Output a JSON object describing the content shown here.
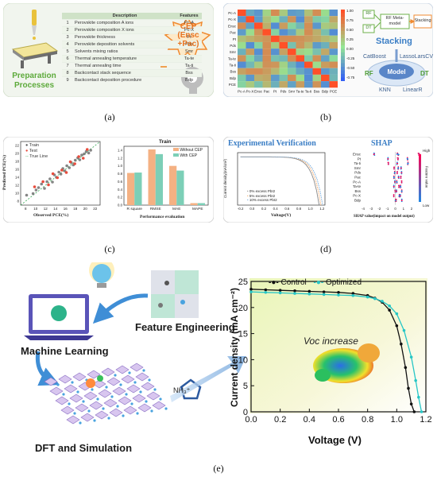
{
  "panel_a": {
    "caption": "(a)",
    "preparation_label": "Preparation Processes",
    "table_headers": [
      "Description",
      "Features"
    ],
    "table_rows": [
      {
        "n": "1",
        "desc": "Perovskite composition A ions",
        "feat": "Pc-A"
      },
      {
        "n": "2",
        "desc": "Perovskite composition X ions",
        "feat": "Pc-X"
      },
      {
        "n": "3",
        "desc": "Perovskite thickness",
        "feat": "Pt"
      },
      {
        "n": "4",
        "desc": "Perovskite deposition solvents",
        "feat": "Pds"
      },
      {
        "n": "5",
        "desc": "Solvents mixing ratios",
        "feat": "Smr"
      },
      {
        "n": "6",
        "desc": "Thermal annealing temperature",
        "feat": "Ta-te"
      },
      {
        "n": "7",
        "desc": "Thermal annealing time",
        "feat": "Ta-ti"
      },
      {
        "n": "8",
        "desc": "Backcontact stack sequence",
        "feat": "Bss"
      },
      {
        "n": "9",
        "desc": "Backcontact deposition procedure",
        "feat": "Bdp"
      }
    ],
    "cep_line1": "CEP",
    "cep_line2": "(Ensc",
    "cep_line3": "+Pac)"
  },
  "panel_b": {
    "caption": "(b)",
    "heatmap_labels": [
      "Pc-A",
      "Pc-X",
      "Ensc",
      "Pac",
      "Pt",
      "Pds",
      "Smr",
      "Ta-te",
      "Ta-ti",
      "Bss",
      "Bdp",
      "PCE"
    ],
    "colorbar_ticks": [
      "1.00",
      "0.75",
      "0.50",
      "0.25",
      "0.00",
      "-0.25",
      "-0.50",
      "-0.75"
    ],
    "flow": {
      "rf": "RF",
      "dt": "DT",
      "meta": "RF Meta-model",
      "stacking": "Stacking"
    },
    "stacking_title": "Stacking",
    "models": {
      "catboost": "CatBoost",
      "lassolarscv": "LassoLarsCV",
      "rf": "RF",
      "dt": "DT",
      "center": "Model",
      "knn": "KNN",
      "linearr": "LinearR"
    }
  },
  "panel_c": {
    "caption": "(c)",
    "scatter": {
      "legend": [
        "Train",
        "Test",
        "True Line"
      ],
      "xlabel": "Observed PCE(%)",
      "ylabel": "Predicted PCE(%)",
      "xticks": [
        "8",
        "10",
        "12",
        "14",
        "16",
        "18",
        "20",
        "22"
      ],
      "yticks": [
        "8",
        "10",
        "12",
        "14",
        "16",
        "18",
        "20",
        "22"
      ]
    },
    "bars": {
      "title": "Train",
      "legend": [
        "Without CEP",
        "With CEP"
      ],
      "xlabel": "Performance evaluation",
      "yticks": [
        "0.0",
        "0.2",
        "0.4",
        "0.6",
        "0.8",
        "1.0",
        "1.2",
        "1.4"
      ]
    }
  },
  "panel_d": {
    "caption": "(d)",
    "ev_title": "Experimental Verification",
    "ev_ylabel": "Current density(mA/cm²)",
    "ev_xlabel": "Voltage(V)",
    "ev_xticks": [
      "-0.2",
      "0.0",
      "0.2",
      "0.4",
      "0.6",
      "0.8",
      "1.0",
      "1.2"
    ],
    "ev_legend": [
      "0% excess PbI2",
      "5% excess PbI2",
      "10% excess PbI2"
    ],
    "shap_title": "SHAP",
    "shap_features": [
      "Ensc",
      "Pt",
      "Ta-ti",
      "Smr",
      "Pds",
      "Pac",
      "Pc-A",
      "Ta-te",
      "Bss",
      "Pc-X",
      "Bdp"
    ],
    "shap_xticks": [
      "-4",
      "-3",
      "-2",
      "-1",
      "0",
      "1",
      "2"
    ],
    "shap_xlabel": "SHAP value(impact on model output)",
    "shap_high": "High",
    "shap_low": "Low",
    "shap_side": "Feature value"
  },
  "panel_e": {
    "caption": "(e)",
    "ml_label": "Machine Learning",
    "fe_label": "Feature Engineering",
    "dft_label": "DFT and Simulation",
    "nh3_label": "NH₃⁺",
    "voc_label": "Voc increase",
    "legend": [
      "Control",
      "Optimized"
    ],
    "xlabel": "Voltage (V)",
    "ylabel": "Current density (mA cm⁻²)"
  },
  "chart_data": [
    {
      "type": "bar",
      "title": "Train",
      "categories": [
        "R square",
        "RMSE",
        "MAE",
        "MAPE"
      ],
      "series": [
        {
          "name": "Without CEP",
          "values": [
            0.82,
            1.42,
            1.0,
            0.05
          ]
        },
        {
          "name": "With CEP",
          "values": [
            0.83,
            1.3,
            0.88,
            0.05
          ]
        }
      ],
      "xlabel": "Performance evaluation",
      "ylim": [
        0,
        1.5
      ],
      "colors": [
        "#f4b183",
        "#7ccfb7"
      ]
    },
    {
      "type": "scatter",
      "xlabel": "Observed PCE(%)",
      "ylabel": "Predicted PCE(%)",
      "xlim": [
        7,
        23
      ],
      "ylim": [
        7,
        23
      ],
      "series": [
        {
          "name": "Train",
          "points": [
            [
              8.2,
              9.5
            ],
            [
              9.5,
              9.9
            ],
            [
              10.1,
              10.8
            ],
            [
              10.6,
              11.4
            ],
            [
              11.2,
              12.3
            ],
            [
              11.8,
              11.2
            ],
            [
              12.3,
              12.9
            ],
            [
              12.9,
              13.6
            ],
            [
              13.4,
              12.8
            ],
            [
              13.8,
              14.6
            ],
            [
              14.2,
              14.0
            ],
            [
              14.7,
              15.3
            ],
            [
              15.1,
              14.8
            ],
            [
              15.5,
              16.2
            ],
            [
              15.9,
              15.6
            ],
            [
              16.3,
              16.9
            ],
            [
              16.8,
              16.4
            ],
            [
              17.2,
              17.7
            ],
            [
              17.6,
              17.1
            ],
            [
              18.0,
              18.3
            ],
            [
              18.5,
              18.9
            ],
            [
              18.9,
              18.4
            ],
            [
              19.3,
              19.6
            ],
            [
              19.8,
              19.9
            ],
            [
              20.2,
              20.5
            ],
            [
              20.7,
              20.1
            ],
            [
              21.1,
              20.8
            ]
          ]
        },
        {
          "name": "Test",
          "points": [
            [
              9.8,
              11.6
            ],
            [
              11.5,
              12.9
            ],
            [
              12.6,
              12.1
            ],
            [
              13.5,
              14.9
            ],
            [
              14.4,
              13.9
            ],
            [
              15.3,
              15.8
            ],
            [
              16.2,
              15.2
            ],
            [
              17.0,
              17.9
            ],
            [
              17.9,
              17.4
            ],
            [
              18.7,
              19.2
            ],
            [
              19.6,
              18.8
            ],
            [
              20.4,
              21.0
            ]
          ]
        }
      ]
    },
    {
      "type": "line",
      "xlabel": "Voltage (V)",
      "ylabel": "Current density (mA cm⁻²)",
      "xlim": [
        0,
        1.2
      ],
      "ylim": [
        0,
        25
      ],
      "xticks": [
        "0.0",
        "0.2",
        "0.4",
        "0.6",
        "0.8",
        "1.0",
        "1.2"
      ],
      "yticks": [
        "0",
        "5",
        "10",
        "15",
        "20",
        "25"
      ],
      "series": [
        {
          "name": "Control",
          "x": [
            0,
            0.1,
            0.2,
            0.3,
            0.4,
            0.5,
            0.6,
            0.7,
            0.8,
            0.85,
            0.9,
            0.95,
            1.0,
            1.03,
            1.06,
            1.08,
            1.1,
            1.12
          ],
          "y": [
            23.5,
            23.4,
            23.3,
            23.2,
            23.1,
            23.0,
            22.9,
            22.7,
            22.3,
            21.8,
            21.0,
            19.5,
            16.5,
            13.0,
            8.5,
            4.5,
            1.5,
            0
          ]
        },
        {
          "name": "Optimized",
          "x": [
            0,
            0.1,
            0.2,
            0.3,
            0.4,
            0.5,
            0.6,
            0.7,
            0.8,
            0.85,
            0.9,
            0.95,
            1.0,
            1.05,
            1.1,
            1.13,
            1.15,
            1.17
          ],
          "y": [
            23.0,
            22.9,
            22.8,
            22.7,
            22.6,
            22.5,
            22.4,
            22.3,
            22.0,
            21.7,
            21.2,
            20.3,
            18.8,
            15.6,
            10.5,
            6.0,
            2.8,
            0
          ]
        }
      ],
      "colors": [
        "#111111",
        "#26c6c6"
      ]
    }
  ]
}
